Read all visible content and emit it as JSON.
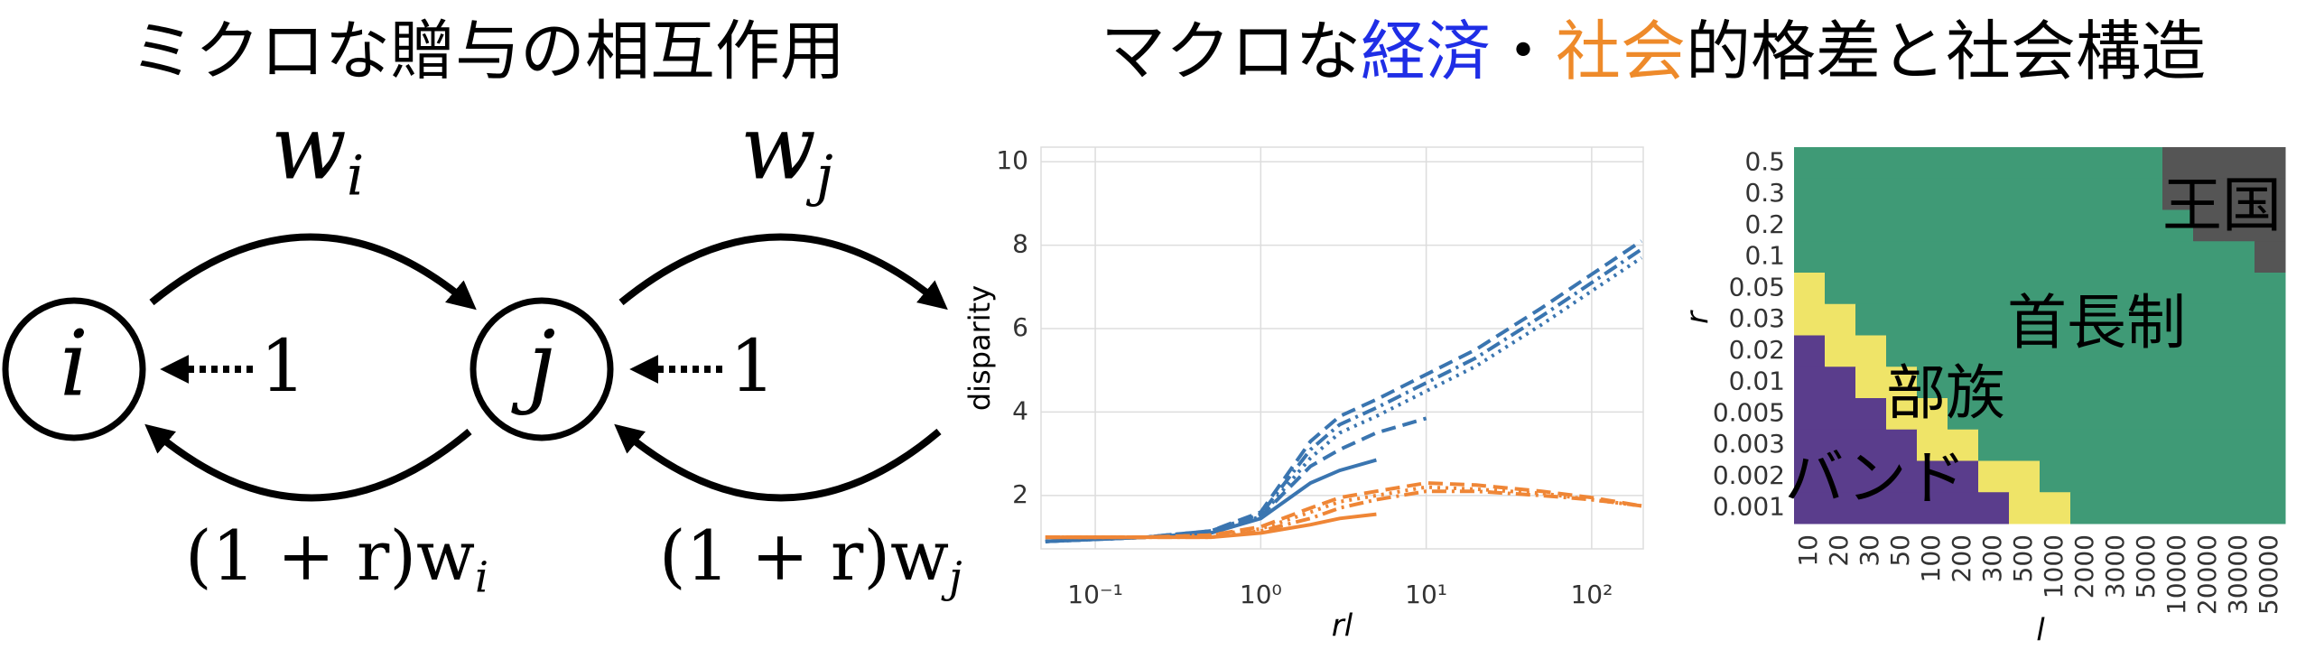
{
  "diagram": {
    "title": "ミクロな贈与の相互作用",
    "nodes": [
      {
        "label": "i"
      },
      {
        "label": "j"
      }
    ],
    "gifts": [
      {
        "base": "w",
        "sub": "i"
      },
      {
        "base": "w",
        "sub": "j"
      }
    ],
    "returns": [
      {
        "text": "(1 + r)w",
        "sub": "i"
      },
      {
        "text": "(1 + r)w",
        "sub": "j"
      }
    ],
    "unit_labels": [
      "1",
      "1"
    ]
  },
  "panel_title": [
    {
      "text": "マクロな"
    },
    {
      "text": "経済",
      "color": "#1f2ee6"
    },
    {
      "text": "・"
    },
    {
      "text": "社会",
      "color": "#ee8a2a"
    },
    {
      "text": "的格差と社会構造"
    }
  ],
  "chart_data": [
    {
      "type": "line",
      "xlabel": "rl",
      "ylabel": "disparity",
      "xscale": "log",
      "grid": true,
      "x": [
        0.05,
        0.1,
        0.2,
        0.5,
        1,
        2,
        3,
        5,
        10,
        20,
        50,
        100,
        200
      ],
      "xlim": [
        0.047,
        205
      ],
      "ylim": [
        0.72,
        10.35
      ],
      "xticks": [
        {
          "value": 0.1,
          "label": "10⁻¹"
        },
        {
          "value": 1,
          "label": "10⁰"
        },
        {
          "value": 10,
          "label": "10¹"
        },
        {
          "value": 100,
          "label": "10²"
        }
      ],
      "yticks": [
        2,
        4,
        6,
        8,
        10
      ],
      "series": [
        {
          "color": "#3a75b0",
          "style": "dashed",
          "values": [
            0.9,
            0.95,
            1.0,
            1.15,
            1.6,
            3.3,
            3.9,
            4.3,
            4.9,
            5.5,
            6.5,
            7.3,
            8.1
          ]
        },
        {
          "color": "#3a75b0",
          "style": "dashdot",
          "values": [
            0.9,
            0.95,
            1.0,
            1.15,
            1.55,
            3.1,
            3.7,
            4.1,
            4.7,
            5.3,
            6.3,
            7.1,
            7.9
          ]
        },
        {
          "color": "#3a75b0",
          "style": "dotted",
          "values": [
            0.9,
            0.95,
            1.0,
            1.1,
            1.5,
            2.9,
            3.5,
            3.9,
            4.5,
            5.1,
            6.1,
            6.9,
            7.7
          ]
        },
        {
          "color": "#3a75b0",
          "style": "dashed",
          "values": [
            0.9,
            0.95,
            1.0,
            1.1,
            1.5,
            2.7,
            3.1,
            3.5,
            3.85,
            null,
            null,
            null,
            null
          ]
        },
        {
          "color": "#3a75b0",
          "style": "solid",
          "values": [
            0.9,
            0.95,
            1.0,
            1.1,
            1.45,
            2.3,
            2.6,
            2.85,
            null,
            null,
            null,
            null,
            null
          ]
        },
        {
          "color": "#ef8636",
          "style": "dashed",
          "values": [
            1.0,
            1.0,
            1.0,
            1.05,
            1.25,
            1.7,
            1.95,
            2.1,
            2.3,
            2.25,
            2.1,
            1.95,
            1.75
          ]
        },
        {
          "color": "#ef8636",
          "style": "dotted",
          "values": [
            1.0,
            1.0,
            1.0,
            1.05,
            1.2,
            1.6,
            1.85,
            2.0,
            2.2,
            2.15,
            2.05,
            1.9,
            1.75
          ]
        },
        {
          "color": "#ef8636",
          "style": "dashdot",
          "values": [
            1.0,
            1.0,
            1.0,
            1.0,
            1.15,
            1.45,
            1.7,
            1.9,
            2.1,
            2.1,
            2.0,
            1.9,
            1.75
          ]
        },
        {
          "color": "#ef8636",
          "style": "solid",
          "values": [
            1.0,
            1.0,
            1.0,
            1.0,
            1.1,
            1.3,
            1.45,
            1.55,
            null,
            null,
            null,
            null,
            null
          ]
        }
      ]
    },
    {
      "type": "heatmap",
      "xlabel": "l",
      "ylabel": "r",
      "x_categories": [
        "10",
        "20",
        "30",
        "50",
        "100",
        "200",
        "300",
        "500",
        "1000",
        "2000",
        "3000",
        "5000",
        "10000",
        "20000",
        "30000",
        "50000"
      ],
      "y_categories": [
        "0.5",
        "0.3",
        "0.2",
        "0.1",
        "0.05",
        "0.03",
        "0.02",
        "0.01",
        "0.005",
        "0.003",
        "0.002",
        "0.001"
      ],
      "classes": [
        {
          "name": "バンド",
          "color": "#5a3d8c"
        },
        {
          "name": "部族",
          "color": "#efe468"
        },
        {
          "name": "首長制",
          "color": "#3f9a76"
        },
        {
          "name": "王国",
          "color": "#555555"
        }
      ],
      "values": [
        [
          2,
          2,
          2,
          2,
          2,
          2,
          2,
          2,
          2,
          2,
          2,
          2,
          3,
          3,
          3,
          3
        ],
        [
          2,
          2,
          2,
          2,
          2,
          2,
          2,
          2,
          2,
          2,
          2,
          2,
          3,
          3,
          3,
          3
        ],
        [
          2,
          2,
          2,
          2,
          2,
          2,
          2,
          2,
          2,
          2,
          2,
          2,
          2,
          3,
          3,
          3
        ],
        [
          2,
          2,
          2,
          2,
          2,
          2,
          2,
          2,
          2,
          2,
          2,
          2,
          2,
          2,
          2,
          3
        ],
        [
          1,
          2,
          2,
          2,
          2,
          2,
          2,
          2,
          2,
          2,
          2,
          2,
          2,
          2,
          2,
          2
        ],
        [
          1,
          1,
          2,
          2,
          2,
          2,
          2,
          2,
          2,
          2,
          2,
          2,
          2,
          2,
          2,
          2
        ],
        [
          0,
          1,
          1,
          2,
          2,
          2,
          2,
          2,
          2,
          2,
          2,
          2,
          2,
          2,
          2,
          2
        ],
        [
          0,
          0,
          1,
          1,
          2,
          2,
          2,
          2,
          2,
          2,
          2,
          2,
          2,
          2,
          2,
          2
        ],
        [
          0,
          0,
          0,
          1,
          1,
          2,
          2,
          2,
          2,
          2,
          2,
          2,
          2,
          2,
          2,
          2
        ],
        [
          0,
          0,
          0,
          0,
          1,
          1,
          2,
          2,
          2,
          2,
          2,
          2,
          2,
          2,
          2,
          2
        ],
        [
          0,
          0,
          0,
          0,
          0,
          0,
          1,
          1,
          2,
          2,
          2,
          2,
          2,
          2,
          2,
          2
        ],
        [
          0,
          0,
          0,
          0,
          0,
          0,
          0,
          1,
          1,
          2,
          2,
          2,
          2,
          2,
          2,
          2
        ]
      ]
    }
  ]
}
